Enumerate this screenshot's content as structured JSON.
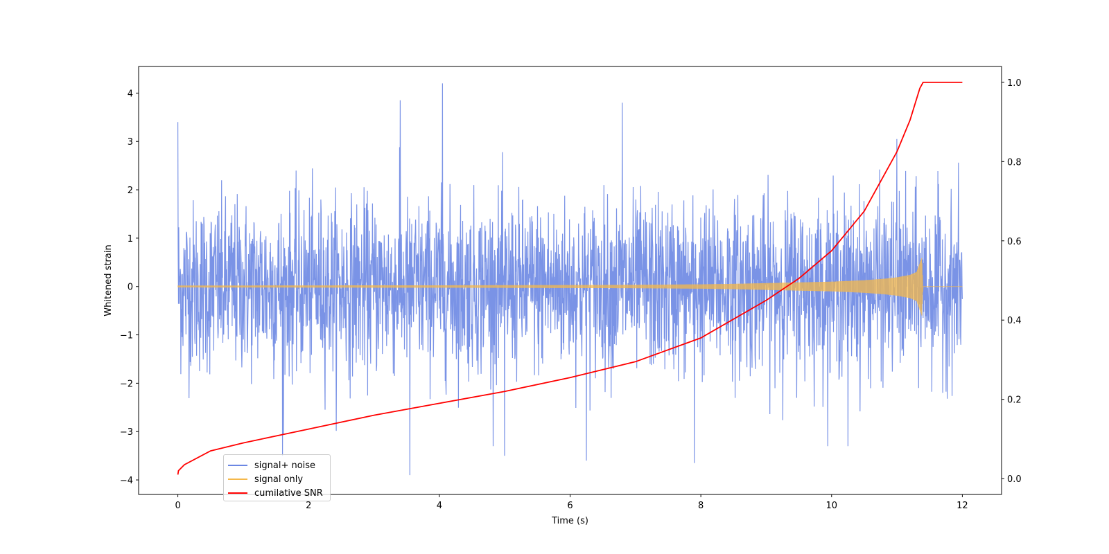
{
  "chart_data": {
    "type": "line",
    "xlabel": "Time (s)",
    "ylabel": "Whitened strain",
    "xlim": [
      -0.6,
      12.6
    ],
    "ylim": [
      -4.3,
      4.55
    ],
    "y2lim": [
      -0.04,
      1.04
    ],
    "xticks": [
      0,
      2,
      4,
      6,
      8,
      10,
      12
    ],
    "xtick_labels": [
      "0",
      "2",
      "4",
      "6",
      "8",
      "10",
      "12"
    ],
    "yticks": [
      -4,
      -3,
      -2,
      -1,
      0,
      1,
      2,
      3,
      4
    ],
    "ytick_labels": [
      "−4",
      "−3",
      "−2",
      "−1",
      "0",
      "1",
      "2",
      "3",
      "4"
    ],
    "y2ticks": [
      0.0,
      0.2,
      0.4,
      0.6,
      0.8,
      1.0
    ],
    "y2tick_labels": [
      "0.0",
      "0.2",
      "0.4",
      "0.6",
      "0.8",
      "1.0"
    ],
    "grid": false,
    "legend_position": "lower-left",
    "series": [
      {
        "name": "signal+ noise",
        "color": "#6b87e3",
        "axis": "left",
        "description_values": {
          "x_range": [
            0,
            12
          ],
          "typical_envelope": [
            -2.5,
            2.5
          ],
          "peaks": [
            [
              0.0,
              3.4
            ],
            [
              3.4,
              3.85
            ],
            [
              4.05,
              4.2
            ],
            [
              6.8,
              3.8
            ],
            [
              11.0,
              3.05
            ]
          ],
          "troughs": [
            [
              1.6,
              -3.5
            ],
            [
              3.55,
              -3.9
            ],
            [
              5.0,
              -3.5
            ],
            [
              6.25,
              -3.6
            ],
            [
              7.9,
              -3.65
            ],
            [
              10.25,
              -3.3
            ]
          ]
        }
      },
      {
        "name": "signal only",
        "color": "#f5b84a",
        "axis": "left",
        "envelope": {
          "x": [
            0,
            2,
            4,
            6,
            7,
            8,
            8.5,
            9,
            9.5,
            10,
            10.5,
            10.8,
            11.0,
            11.2,
            11.3,
            11.38,
            11.4,
            12
          ],
          "amp": [
            0.02,
            0.022,
            0.025,
            0.03,
            0.035,
            0.045,
            0.055,
            0.07,
            0.085,
            0.1,
            0.13,
            0.16,
            0.19,
            0.24,
            0.3,
            0.6,
            0.0,
            0.0
          ]
        }
      },
      {
        "name": "cumilative SNR",
        "color": "#ff0000",
        "axis": "right",
        "x": [
          0,
          0.01,
          0.1,
          0.5,
          1,
          2,
          3,
          4,
          5,
          6,
          7,
          8,
          9,
          9.5,
          10,
          10.5,
          11,
          11.2,
          11.35,
          11.4,
          12
        ],
        "y": [
          0.01,
          0.02,
          0.035,
          0.07,
          0.09,
          0.125,
          0.16,
          0.19,
          0.22,
          0.255,
          0.295,
          0.355,
          0.45,
          0.505,
          0.575,
          0.675,
          0.825,
          0.905,
          0.985,
          1.0,
          1.0
        ]
      }
    ]
  }
}
